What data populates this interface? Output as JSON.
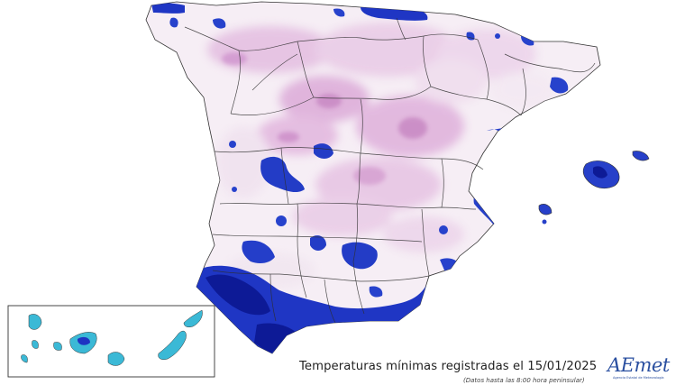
{
  "map": {
    "title": "Temperaturas mínimas registradas el 15/01/2025",
    "subtitle": "(Datos hasta las 8:00 hora peninsular)",
    "colors": {
      "warm": "#d9a6d3",
      "mild": "#efdbee",
      "neutral": "#f7f2f7",
      "cold": "#2340c8",
      "very_cold": "#0c1790",
      "canary": "#3bb9d6",
      "border": "#2b2b2b"
    },
    "insets": [
      "Canary Islands"
    ],
    "logo": {
      "text": "AEmet",
      "subtext": "Agencia Estatal de Meteorología"
    }
  }
}
